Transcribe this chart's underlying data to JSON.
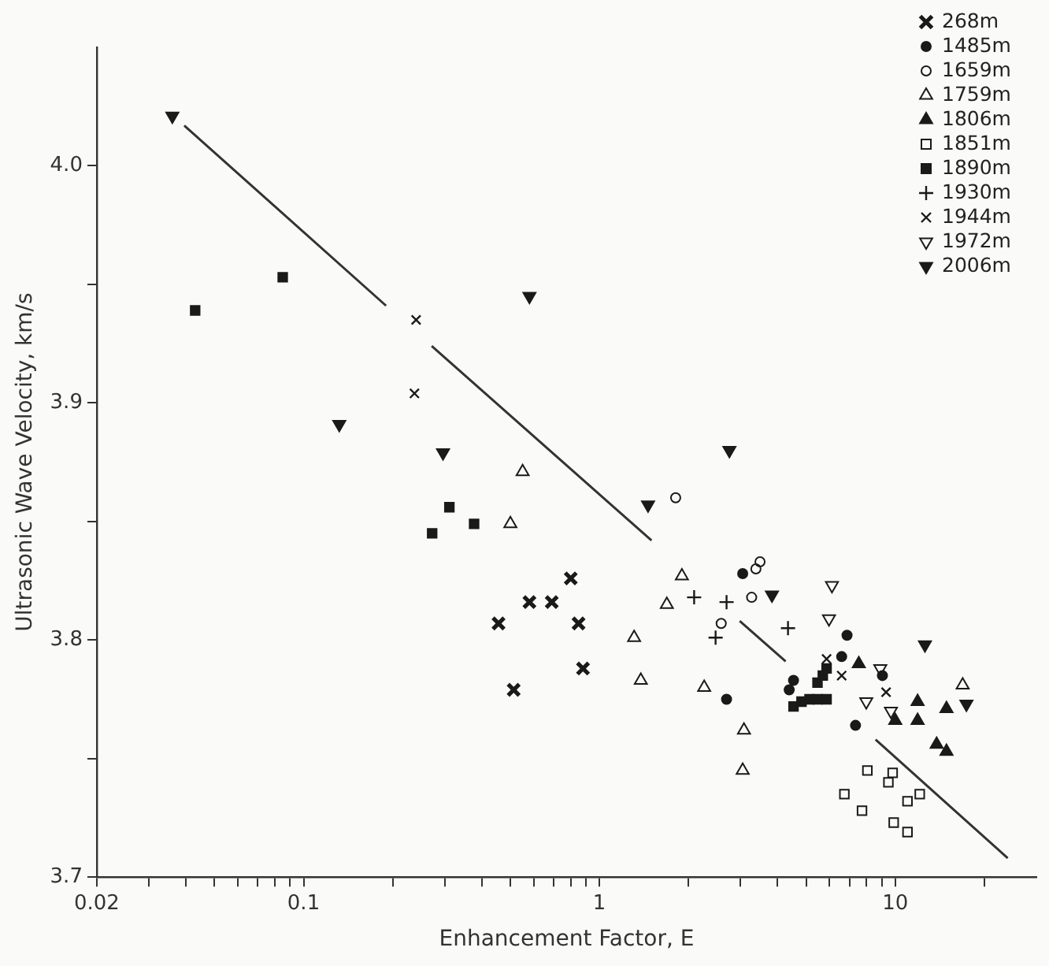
{
  "chart_data": {
    "type": "scatter",
    "xlabel": "Enhancement Factor, E",
    "ylabel": "Ultrasonic Wave Velocity, km/s",
    "log": "x",
    "grid": false,
    "legend": "top right",
    "xlim": [
      0.02,
      30
    ],
    "ylim": [
      3.7,
      4.05
    ],
    "xticks": [
      0.02,
      {
        "value": 0.03,
        "label": null
      },
      {
        "value": 0.04,
        "label": null
      },
      {
        "value": 0.05,
        "label": null
      },
      {
        "value": 0.06,
        "label": null
      },
      {
        "value": 0.07,
        "label": null
      },
      {
        "value": 0.08,
        "label": null
      },
      {
        "value": 0.09,
        "label": null
      },
      0.1,
      {
        "value": 0.2,
        "label": null
      },
      {
        "value": 0.3,
        "label": null
      },
      {
        "value": 0.4,
        "label": null
      },
      {
        "value": 0.5,
        "label": null
      },
      {
        "value": 0.6,
        "label": null
      },
      {
        "value": 0.7,
        "label": null
      },
      {
        "value": 0.8,
        "label": null
      },
      {
        "value": 0.9,
        "label": null
      },
      1,
      {
        "value": 2,
        "label": null
      },
      {
        "value": 3,
        "label": null
      },
      {
        "value": 4,
        "label": null
      },
      {
        "value": 5,
        "label": null
      },
      {
        "value": 6,
        "label": null
      },
      {
        "value": 7,
        "label": null
      },
      {
        "value": 8,
        "label": null
      },
      {
        "value": 9,
        "label": null
      },
      10,
      {
        "value": 20,
        "label": null
      }
    ],
    "yticks": [
      {
        "value": 3.7,
        "label": "3.7"
      },
      {
        "value": 3.75,
        "label": null
      },
      {
        "value": 3.8,
        "label": "3.8"
      },
      {
        "value": 3.85,
        "label": null
      },
      {
        "value": 3.9,
        "label": "3.9"
      },
      {
        "value": 3.95,
        "label": null
      },
      {
        "value": 4.0,
        "label": "4.0"
      }
    ],
    "series": [
      {
        "name": "268m",
        "color": "#1a1a1a",
        "marker": "cross",
        "x": [
          0.456,
          0.513,
          0.58,
          0.69,
          0.8,
          0.85,
          0.88
        ],
        "values": [
          3.807,
          3.779,
          3.816,
          3.816,
          3.826,
          3.807,
          3.788
        ]
      },
      {
        "name": "1485m",
        "color": "#1a1a1a",
        "marker": "circle",
        "x": [
          3.05,
          2.69,
          6.87,
          6.59,
          9.05,
          7.34,
          4.53,
          4.38
        ],
        "values": [
          3.828,
          3.775,
          3.802,
          3.793,
          3.785,
          3.764,
          3.783,
          3.779
        ]
      },
      {
        "name": "1659m",
        "color": "#1a1a1a",
        "marker": "circle-open",
        "x": [
          1.81,
          2.58,
          3.27,
          3.38,
          3.49
        ],
        "values": [
          3.86,
          3.807,
          3.818,
          3.83,
          3.833
        ]
      },
      {
        "name": "1759m",
        "color": "#1a1a1a",
        "marker": "triangle-open",
        "x": [
          0.55,
          0.5,
          1.9,
          1.69,
          1.31,
          1.38,
          2.26,
          3.08,
          3.05,
          16.9
        ],
        "values": [
          3.871,
          3.849,
          3.827,
          3.815,
          3.801,
          3.783,
          3.78,
          3.762,
          3.745,
          3.781
        ]
      },
      {
        "name": "1806m",
        "color": "#1a1a1a",
        "marker": "triangle",
        "x": [
          7.53,
          10.0,
          11.9,
          11.9,
          14.9,
          13.8,
          14.9
        ],
        "values": [
          3.79,
          3.766,
          3.766,
          3.774,
          3.771,
          3.756,
          3.753
        ]
      },
      {
        "name": "1851m",
        "color": "#1a1a1a",
        "marker": "square-open",
        "x": [
          8.05,
          9.8,
          9.48,
          6.73,
          7.72,
          12.1,
          11.0,
          9.88,
          11.0
        ],
        "values": [
          3.745,
          3.744,
          3.74,
          3.735,
          3.728,
          3.735,
          3.732,
          3.723,
          3.719
        ]
      },
      {
        "name": "1890m",
        "color": "#1a1a1a",
        "marker": "square",
        "x": [
          0.043,
          0.085,
          0.272,
          0.311,
          0.377,
          4.53,
          4.82,
          5.13,
          5.46,
          5.86,
          5.46,
          5.69,
          5.86
        ],
        "values": [
          3.939,
          3.953,
          3.845,
          3.856,
          3.849,
          3.772,
          3.774,
          3.775,
          3.775,
          3.775,
          3.782,
          3.785,
          3.788
        ]
      },
      {
        "name": "1930m",
        "color": "#1a1a1a",
        "marker": "plus",
        "x": [
          2.09,
          2.69,
          2.47,
          4.34
        ],
        "values": [
          3.818,
          3.816,
          3.801,
          3.805
        ]
      },
      {
        "name": "1944m",
        "color": "#1a1a1a",
        "marker": "x",
        "x": [
          0.24,
          0.237,
          5.86,
          6.59,
          9.31
        ],
        "values": [
          3.935,
          3.904,
          3.792,
          3.785,
          3.778
        ]
      },
      {
        "name": "1972m",
        "color": "#1a1a1a",
        "marker": "triangle-down-open",
        "x": [
          6.11,
          5.97,
          8.9,
          7.98,
          9.67
        ],
        "values": [
          3.823,
          3.809,
          3.788,
          3.774,
          3.77
        ]
      },
      {
        "name": "2006m",
        "color": "#1a1a1a",
        "marker": "triangle-down",
        "x": [
          0.036,
          0.132,
          0.296,
          0.58,
          2.75,
          1.46,
          3.83,
          12.6,
          17.4
        ],
        "values": [
          4.021,
          3.891,
          3.879,
          3.945,
          3.88,
          3.857,
          3.819,
          3.798,
          3.773
        ]
      },
      {
        "type": "line",
        "color": "#333333",
        "marker": "none",
        "x": [
          0.0395,
          0.19,
          0.23,
          0.271,
          1.5,
          2.1,
          2.98,
          4.26,
          6,
          8.58,
          24
        ],
        "values": [
          4.017,
          3.941,
          null,
          3.924,
          3.842,
          null,
          3.808,
          3.791,
          null,
          3.758,
          3.708
        ]
      }
    ]
  }
}
